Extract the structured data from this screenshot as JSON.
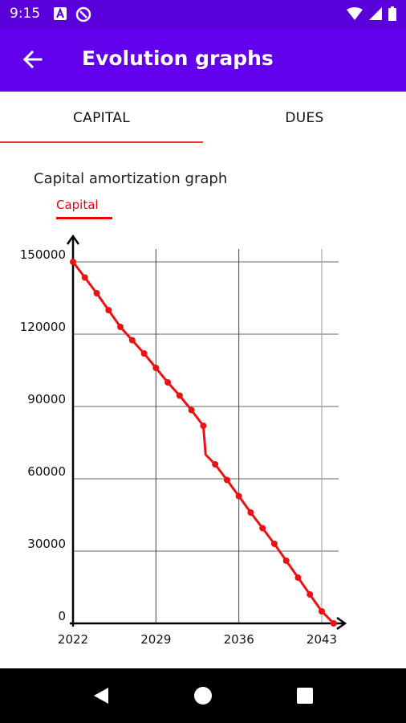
{
  "status_bar": {
    "time": "9:15"
  },
  "app_bar": {
    "title": "Evolution graphs"
  },
  "tabs": [
    {
      "label": "CAPITAL",
      "active": true
    },
    {
      "label": "DUES",
      "active": false
    }
  ],
  "graph_title": "Capital amortization graph",
  "colors": {
    "primary": "#6200ee",
    "status_bar": "#5a00db",
    "accent": "#e53935",
    "series": "#ee1111"
  },
  "chart_data": {
    "type": "line",
    "title": "",
    "xlabel": "",
    "ylabel": "",
    "xlim": [
      2022,
      2045
    ],
    "ylim": [
      0,
      150000
    ],
    "xticks": [
      2022,
      2029,
      2036,
      2043
    ],
    "yticks": [
      0,
      30000,
      60000,
      90000,
      120000,
      150000
    ],
    "grid": true,
    "legend": "top-left",
    "series": [
      {
        "name": "Capital",
        "color": "#ee1111",
        "points": [
          [
            2022,
            150000
          ],
          [
            2023,
            143500
          ],
          [
            2024,
            137000
          ],
          [
            2025,
            130000
          ],
          [
            2026,
            123000
          ],
          [
            2027,
            117500
          ],
          [
            2028,
            112000
          ],
          [
            2029,
            106000
          ],
          [
            2030,
            100000
          ],
          [
            2031,
            94500
          ],
          [
            2032,
            88500
          ],
          [
            2033,
            82000
          ],
          [
            2033.2,
            70000
          ],
          [
            2034,
            66000
          ],
          [
            2035,
            59500
          ],
          [
            2036,
            52800
          ],
          [
            2037,
            46000
          ],
          [
            2038,
            39500
          ],
          [
            2039,
            33000
          ],
          [
            2040,
            26000
          ],
          [
            2041,
            19000
          ],
          [
            2042,
            12000
          ],
          [
            2043,
            5000
          ],
          [
            2044,
            0
          ]
        ],
        "markers": [
          [
            2022,
            150000
          ],
          [
            2023,
            143500
          ],
          [
            2024,
            137000
          ],
          [
            2025,
            130000
          ],
          [
            2026,
            123000
          ],
          [
            2027,
            117500
          ],
          [
            2028,
            112000
          ],
          [
            2029,
            106000
          ],
          [
            2030,
            100000
          ],
          [
            2031,
            94500
          ],
          [
            2032,
            88500
          ],
          [
            2033,
            82000
          ],
          [
            2034,
            66000
          ],
          [
            2035,
            59500
          ],
          [
            2036,
            52800
          ],
          [
            2037,
            46000
          ],
          [
            2038,
            39500
          ],
          [
            2039,
            33000
          ],
          [
            2040,
            26000
          ],
          [
            2041,
            19000
          ],
          [
            2042,
            12000
          ],
          [
            2043,
            5000
          ],
          [
            2044,
            0
          ]
        ]
      }
    ]
  }
}
